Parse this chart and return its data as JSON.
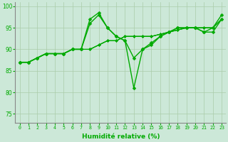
{
  "xlabel": "Humidité relative (%)",
  "ylabel": "",
  "xlim": [
    -0.5,
    23.5
  ],
  "ylim": [
    73,
    101
  ],
  "yticks": [
    75,
    80,
    85,
    90,
    95,
    100
  ],
  "xtick_labels": [
    "0",
    "1",
    "2",
    "3",
    "4",
    "5",
    "6",
    "7",
    "8",
    "9",
    "10",
    "11",
    "12",
    "13",
    "14",
    "15",
    "16",
    "17",
    "18",
    "19",
    "20",
    "21",
    "22",
    "23"
  ],
  "bg_color": "#cce8d8",
  "grid_color": "#aaccaa",
  "line_color": "#00aa00",
  "lines": [
    [
      87,
      87,
      88,
      89,
      89,
      89,
      90,
      90,
      96,
      98,
      95,
      93,
      92,
      88,
      90,
      91,
      93,
      94,
      95,
      95,
      95,
      94,
      95,
      98
    ],
    [
      87,
      87,
      88,
      89,
      89,
      89,
      90,
      90,
      97,
      98.5,
      95,
      93,
      92,
      81,
      90,
      91.5,
      93,
      94,
      95,
      95,
      95,
      94,
      94,
      97
    ],
    [
      87,
      87,
      88,
      89,
      89,
      89,
      90,
      90,
      90,
      91,
      92,
      92,
      93,
      93,
      93,
      93,
      93.5,
      94,
      94.5,
      95,
      95,
      95,
      95,
      97
    ],
    [
      87,
      87,
      88,
      89,
      89,
      89,
      90,
      90,
      90,
      91,
      92,
      92,
      93,
      93,
      93,
      93,
      93.5,
      94,
      94.5,
      95,
      95,
      95,
      95,
      97
    ],
    [
      87,
      87,
      88,
      89,
      89,
      89,
      90,
      90,
      90,
      91,
      92,
      92,
      93,
      93,
      93,
      93,
      93.5,
      94,
      94.5,
      95,
      95,
      95,
      95,
      97
    ]
  ]
}
